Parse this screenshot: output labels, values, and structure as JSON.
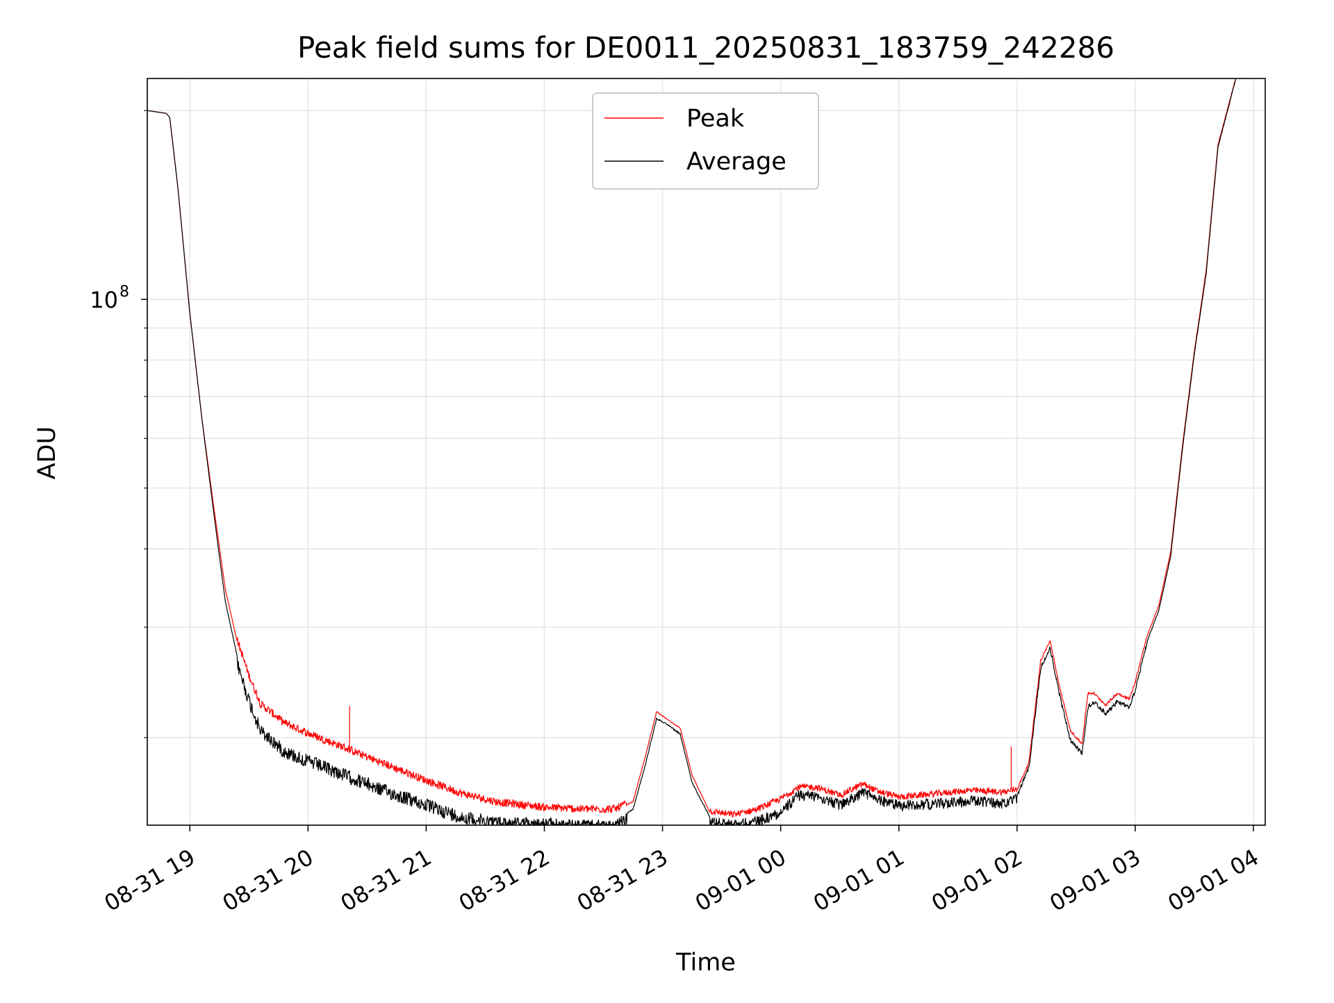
{
  "chart_data": {
    "type": "line",
    "title": "Peak field sums for DE0011_20250831_183759_242286",
    "xlabel": "Time",
    "ylabel": "ADU",
    "yscale": "log",
    "ylim": [
      14500000,
      225000000
    ],
    "xlim_hours": [
      18.64,
      28.1
    ],
    "x_ticks": [
      {
        "hour": 19,
        "label": "08-31 19"
      },
      {
        "hour": 20,
        "label": "08-31 20"
      },
      {
        "hour": 21,
        "label": "08-31 21"
      },
      {
        "hour": 22,
        "label": "08-31 22"
      },
      {
        "hour": 23,
        "label": "08-31 23"
      },
      {
        "hour": 24,
        "label": "09-01 00"
      },
      {
        "hour": 25,
        "label": "09-01 01"
      },
      {
        "hour": 26,
        "label": "09-01 02"
      },
      {
        "hour": 27,
        "label": "09-01 03"
      },
      {
        "hour": 28,
        "label": "09-01 04"
      }
    ],
    "y_major_tick": {
      "value": 100000000,
      "base": "10",
      "exp": "8"
    },
    "y_minor_ticks": [
      20000000,
      30000000,
      40000000,
      50000000,
      60000000,
      70000000,
      80000000,
      90000000,
      200000000
    ],
    "grid": true,
    "legend_position": "top-center",
    "series": [
      {
        "name": "Peak",
        "color": "#ff0000"
      },
      {
        "name": "Average",
        "color": "#000000"
      }
    ],
    "trend": {
      "hour": [
        18.64,
        18.8,
        18.83,
        18.9,
        19.0,
        19.1,
        19.2,
        19.3,
        19.4,
        19.5,
        19.6,
        19.8,
        20.0,
        20.3,
        20.6,
        21.0,
        21.3,
        21.6,
        22.0,
        22.3,
        22.6,
        22.75,
        22.85,
        22.95,
        23.05,
        23.15,
        23.25,
        23.4,
        23.6,
        23.8,
        24.0,
        24.15,
        24.3,
        24.5,
        24.7,
        24.8,
        25.0,
        25.3,
        25.6,
        25.9,
        26.0,
        26.1,
        26.2,
        26.28,
        26.35,
        26.45,
        26.55,
        26.6,
        26.65,
        26.75,
        26.85,
        26.95,
        27.0,
        27.1,
        27.2,
        27.3,
        27.4,
        27.5,
        27.6,
        27.7,
        27.85
      ],
      "average": [
        200000000,
        198000000,
        195000000,
        150000000,
        95000000,
        65000000,
        46000000,
        33000000,
        27000000,
        23500000,
        21000000,
        19500000,
        18800000,
        17900000,
        17000000,
        16000000,
        15300000,
        15000000,
        14900000,
        14800000,
        14800000,
        15400000,
        18000000,
        21500000,
        21000000,
        20300000,
        17000000,
        15000000,
        14800000,
        15000000,
        15500000,
        16500000,
        16500000,
        15900000,
        16700000,
        16300000,
        15900000,
        16000000,
        16200000,
        16000000,
        16300000,
        18000000,
        26000000,
        28000000,
        24000000,
        20000000,
        19000000,
        22500000,
        23000000,
        22000000,
        23000000,
        22500000,
        24000000,
        28500000,
        32000000,
        39000000,
        58000000,
        82000000,
        110000000,
        175000000,
        225000000
      ],
      "peak": [
        200000000,
        198000000,
        195000000,
        150000000,
        95000000,
        65000000,
        47000000,
        34500000,
        28500000,
        25000000,
        22500000,
        21000000,
        20200000,
        19200000,
        18200000,
        17000000,
        16200000,
        15700000,
        15400000,
        15300000,
        15300000,
        15800000,
        18500000,
        22000000,
        21300000,
        20700000,
        17400000,
        15200000,
        15000000,
        15300000,
        15900000,
        16600000,
        16600000,
        16100000,
        16800000,
        16400000,
        16000000,
        16200000,
        16400000,
        16300000,
        16500000,
        18200000,
        26500000,
        28500000,
        24500000,
        20500000,
        19500000,
        23500000,
        23500000,
        22500000,
        23500000,
        23000000,
        24500000,
        29000000,
        32500000,
        39500000,
        58500000,
        82500000,
        111000000,
        176000000,
        225000000
      ]
    }
  }
}
